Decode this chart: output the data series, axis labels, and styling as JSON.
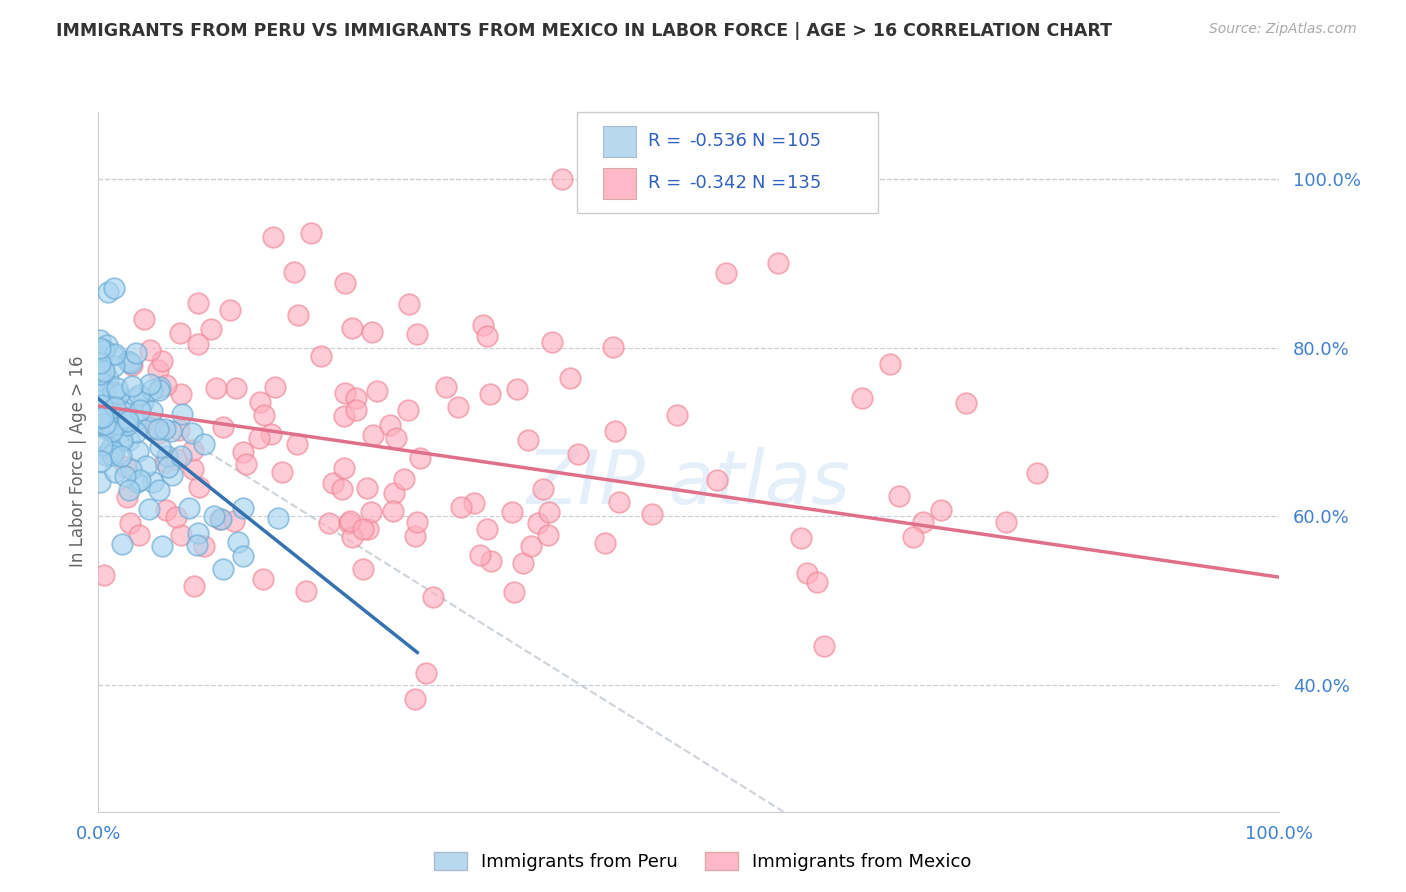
{
  "title": "IMMIGRANTS FROM PERU VS IMMIGRANTS FROM MEXICO IN LABOR FORCE | AGE > 16 CORRELATION CHART",
  "source": "Source: ZipAtlas.com",
  "ylabel": "In Labor Force | Age > 16",
  "peru_label": "Immigrants from Peru",
  "mexico_label": "Immigrants from Mexico",
  "peru_R": -0.536,
  "peru_N": 105,
  "mexico_R": -0.342,
  "mexico_N": 135,
  "peru_scatter_color": "#a8d4f0",
  "peru_scatter_edge": "#6aaad4",
  "mexico_scatter_color": "#ffb0c0",
  "mexico_scatter_edge": "#f08898",
  "peru_line_color": "#3572b0",
  "mexico_line_color": "#e0708a",
  "dashed_line_color": "#c0c8d0",
  "background_color": "#ffffff",
  "grid_color": "#c8d0d8",
  "title_color": "#333333",
  "legend_text_color": "#3060c0",
  "tick_color": "#4080d0",
  "ytick_values": [
    0.4,
    0.6,
    0.8,
    1.0
  ],
  "ytick_labels": [
    "40.0%",
    "60.0%",
    "80.0%",
    "100.0%"
  ],
  "xtick_values": [
    0.0,
    1.0
  ],
  "xtick_labels": [
    "0.0%",
    "100.0%"
  ],
  "xlim": [
    0.0,
    1.0
  ],
  "ylim": [
    0.25,
    1.08
  ],
  "legend_peru_patch": "#b8d8f0",
  "legend_mexico_patch": "#ffb8c8",
  "watermark_color": "#c0d8f0",
  "watermark_alpha": 0.4,
  "seed_peru": 42,
  "seed_mexico": 77
}
